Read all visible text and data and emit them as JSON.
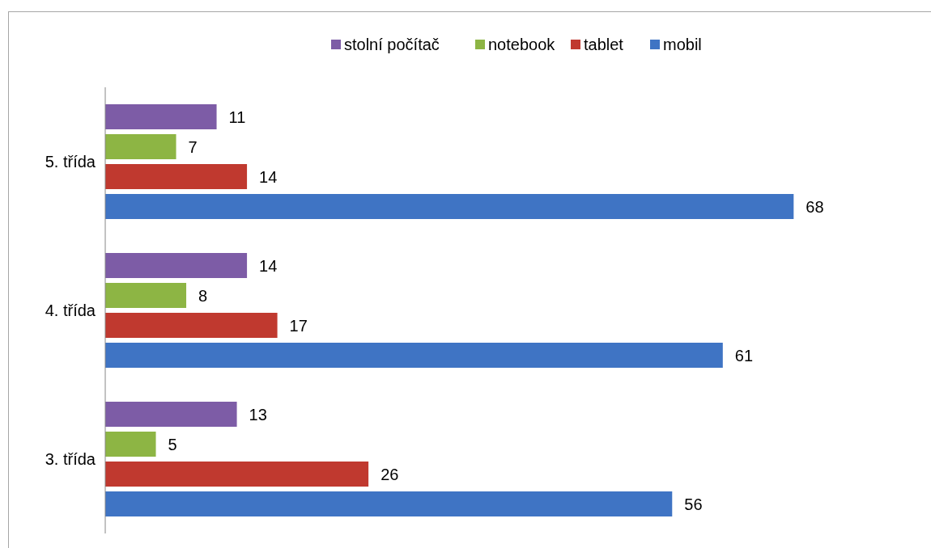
{
  "chart_data": {
    "type": "bar",
    "orientation": "horizontal",
    "categories": [
      "5. třída",
      "4. třída",
      "3. třída"
    ],
    "series": [
      {
        "name": "stolní počítač",
        "color": "#7d5ca6",
        "values": [
          11,
          14,
          13
        ]
      },
      {
        "name": "notebook",
        "color": "#8db544",
        "values": [
          7,
          8,
          5
        ]
      },
      {
        "name": "tablet",
        "color": "#c0392f",
        "values": [
          14,
          17,
          26
        ]
      },
      {
        "name": "mobil",
        "color": "#3f74c4",
        "values": [
          68,
          61,
          56
        ]
      }
    ],
    "data_labels": true,
    "legend": "top",
    "grid": false
  }
}
